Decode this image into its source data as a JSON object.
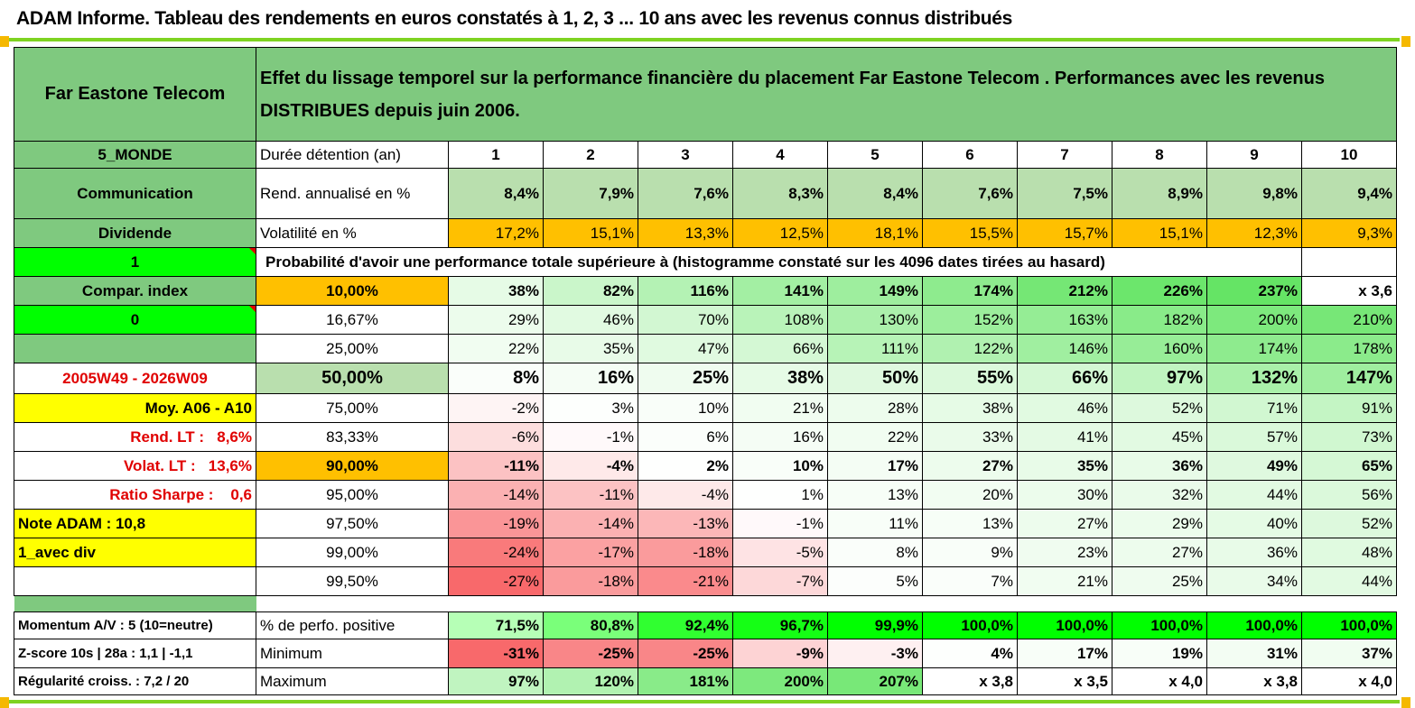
{
  "title": "ADAM Informe. Tableau des rendements en euros constatés à 1, 2, 3 ... 10 ans avec les revenus connus distribués",
  "header": {
    "fund_name": "Far Eastone Telecom",
    "description_line1": "Effet du lissage temporel sur la performance financière du placement Far Eastone Telecom . Performances avec les revenus",
    "description_line2": "DISTRIBUES depuis juin 2006."
  },
  "side": {
    "region": "5_MONDE",
    "sector": "Communication",
    "type": "Dividende",
    "flag1": "1",
    "compar_label": "Compar. index",
    "flag0": "0",
    "period": "2005W49 - 2026W09",
    "moy": "Moy. A06 - A10",
    "rend_lt_label": "Rend. LT :",
    "rend_lt_value": "8,6%",
    "volat_lt_label": "Volat. LT :",
    "volat_lt_value": "13,6%",
    "sharpe_label": "Ratio Sharpe :",
    "sharpe_value": "0,6",
    "note": "Note ADAM : 10,8",
    "avec_div": "1_avec div"
  },
  "labels": {
    "duree": "Durée détention (an)",
    "rend": "Rend. annualisé en %",
    "vol": "Volatilité en %",
    "prob": "Probabilité d'avoir une performance totale supérieure à (histogramme constaté sur les 4096 dates tirées au hasard)"
  },
  "years": [
    "1",
    "2",
    "3",
    "4",
    "5",
    "6",
    "7",
    "8",
    "9",
    "10"
  ],
  "rend": [
    "8,4%",
    "7,9%",
    "7,6%",
    "8,3%",
    "8,4%",
    "7,6%",
    "7,5%",
    "8,9%",
    "9,8%",
    "9,4%"
  ],
  "vol": [
    "17,2%",
    "15,1%",
    "13,3%",
    "12,5%",
    "18,1%",
    "15,5%",
    "15,7%",
    "15,1%",
    "12,3%",
    "9,3%"
  ],
  "prob_rows": [
    {
      "pct": "10,00%",
      "values": [
        "38%",
        "82%",
        "116%",
        "141%",
        "149%",
        "174%",
        "212%",
        "226%",
        "237%",
        "x 3,6"
      ]
    },
    {
      "pct": "16,67%",
      "values": [
        "29%",
        "46%",
        "70%",
        "108%",
        "130%",
        "152%",
        "163%",
        "182%",
        "200%",
        "210%"
      ]
    },
    {
      "pct": "25,00%",
      "values": [
        "22%",
        "35%",
        "47%",
        "66%",
        "111%",
        "122%",
        "146%",
        "160%",
        "174%",
        "178%"
      ]
    },
    {
      "pct": "50,00%",
      "values": [
        "8%",
        "16%",
        "25%",
        "38%",
        "50%",
        "55%",
        "66%",
        "97%",
        "132%",
        "147%"
      ]
    },
    {
      "pct": "75,00%",
      "values": [
        "-2%",
        "3%",
        "10%",
        "21%",
        "28%",
        "38%",
        "46%",
        "52%",
        "71%",
        "91%"
      ]
    },
    {
      "pct": "83,33%",
      "values": [
        "-6%",
        "-1%",
        "6%",
        "16%",
        "22%",
        "33%",
        "41%",
        "45%",
        "57%",
        "73%"
      ]
    },
    {
      "pct": "90,00%",
      "values": [
        "-11%",
        "-4%",
        "2%",
        "10%",
        "17%",
        "27%",
        "35%",
        "36%",
        "49%",
        "65%"
      ]
    },
    {
      "pct": "95,00%",
      "values": [
        "-14%",
        "-11%",
        "-4%",
        "1%",
        "13%",
        "20%",
        "30%",
        "32%",
        "44%",
        "56%"
      ]
    },
    {
      "pct": "97,50%",
      "values": [
        "-19%",
        "-14%",
        "-13%",
        "-1%",
        "11%",
        "13%",
        "27%",
        "29%",
        "40%",
        "52%"
      ]
    },
    {
      "pct": "99,00%",
      "values": [
        "-24%",
        "-17%",
        "-18%",
        "-5%",
        "8%",
        "9%",
        "23%",
        "27%",
        "36%",
        "48%"
      ]
    },
    {
      "pct": "99,50%",
      "values": [
        "-27%",
        "-18%",
        "-21%",
        "-7%",
        "5%",
        "7%",
        "21%",
        "25%",
        "34%",
        "44%"
      ]
    }
  ],
  "bottom": [
    {
      "side": "Momentum A/V : 5 (10=neutre)",
      "label": "% de perfo. positive",
      "values": [
        "71,5%",
        "80,8%",
        "92,4%",
        "96,7%",
        "99,9%",
        "100,0%",
        "100,0%",
        "100,0%",
        "100,0%",
        "100,0%"
      ]
    },
    {
      "side": "Z-score 10s | 28a : 1,1 | -1,1",
      "label": "Minimum",
      "values": [
        "-31%",
        "-25%",
        "-25%",
        "-9%",
        "-3%",
        "4%",
        "17%",
        "19%",
        "31%",
        "37%"
      ]
    },
    {
      "side": "Régularité croiss. : 7,2 / 20",
      "label": "Maximum",
      "values": [
        "97%",
        "120%",
        "181%",
        "200%",
        "207%",
        "x 3,8",
        "x 3,5",
        "x 4,0",
        "x 3,8",
        "x 4,0"
      ]
    }
  ],
  "colors": {
    "section_green": "#7fc97f",
    "light_green": "#b9dfae",
    "volatility_orange": "#ffc000",
    "lime": "#00ff00",
    "highlight_yellow": "#ffff00",
    "negative_red": "#f8696b",
    "positive_green": "#63e463",
    "label_red": "#e00000"
  }
}
